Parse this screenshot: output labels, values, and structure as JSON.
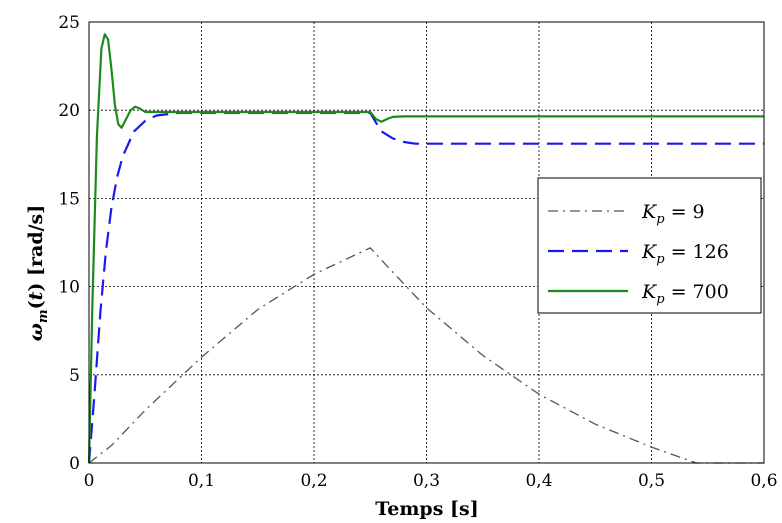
{
  "chart_data": {
    "type": "line",
    "xlabel": "Temps [s]",
    "ylabel": "ω_m(t) [rad/s]",
    "xlim": [
      0,
      0.6
    ],
    "ylim": [
      0,
      25
    ],
    "grid": true,
    "legend_position": "right",
    "x_ticks": [
      "0",
      "0,1",
      "0,2",
      "0,3",
      "0,4",
      "0,5",
      "0,6"
    ],
    "y_ticks": [
      "0",
      "5",
      "10",
      "15",
      "20",
      "25"
    ],
    "series": [
      {
        "name": "K_p = 9",
        "legend_sub": "p",
        "legend_value": "9",
        "color": "#555555",
        "dash": "dashdot",
        "x": [
          0,
          0.01,
          0.02,
          0.05,
          0.1,
          0.15,
          0.2,
          0.25,
          0.26,
          0.3,
          0.35,
          0.4,
          0.45,
          0.5,
          0.54,
          0.6
        ],
        "y": [
          0,
          0.5,
          1.0,
          3.0,
          6.0,
          8.7,
          10.7,
          12.2,
          11.5,
          8.8,
          6.1,
          3.9,
          2.2,
          0.9,
          0.0,
          0.0
        ]
      },
      {
        "name": "K_p = 126",
        "legend_sub": "p",
        "legend_value": "126",
        "color": "#1a1aee",
        "dash": "dashed",
        "x": [
          0,
          0.005,
          0.01,
          0.015,
          0.02,
          0.025,
          0.03,
          0.04,
          0.05,
          0.06,
          0.08,
          0.1,
          0.25,
          0.255,
          0.26,
          0.27,
          0.28,
          0.29,
          0.6
        ],
        "y": [
          0,
          4.0,
          8.5,
          12.0,
          14.5,
          16.2,
          17.4,
          18.8,
          19.4,
          19.7,
          19.85,
          19.85,
          19.85,
          19.3,
          18.8,
          18.4,
          18.2,
          18.1,
          18.1
        ]
      },
      {
        "name": "K_p = 700",
        "legend_sub": "p",
        "legend_value": "700",
        "color": "#1e8a1e",
        "dash": "solid",
        "x": [
          0,
          0.003,
          0.007,
          0.011,
          0.014,
          0.017,
          0.02,
          0.023,
          0.026,
          0.029,
          0.033,
          0.037,
          0.041,
          0.045,
          0.05,
          0.06,
          0.1,
          0.25,
          0.255,
          0.26,
          0.265,
          0.27,
          0.28,
          0.6
        ],
        "y": [
          0,
          9.0,
          18.5,
          23.5,
          24.3,
          24.0,
          22.3,
          20.3,
          19.2,
          19.0,
          19.5,
          20.0,
          20.2,
          20.1,
          19.9,
          19.9,
          19.9,
          19.9,
          19.5,
          19.35,
          19.5,
          19.62,
          19.65,
          19.65
        ]
      }
    ]
  }
}
